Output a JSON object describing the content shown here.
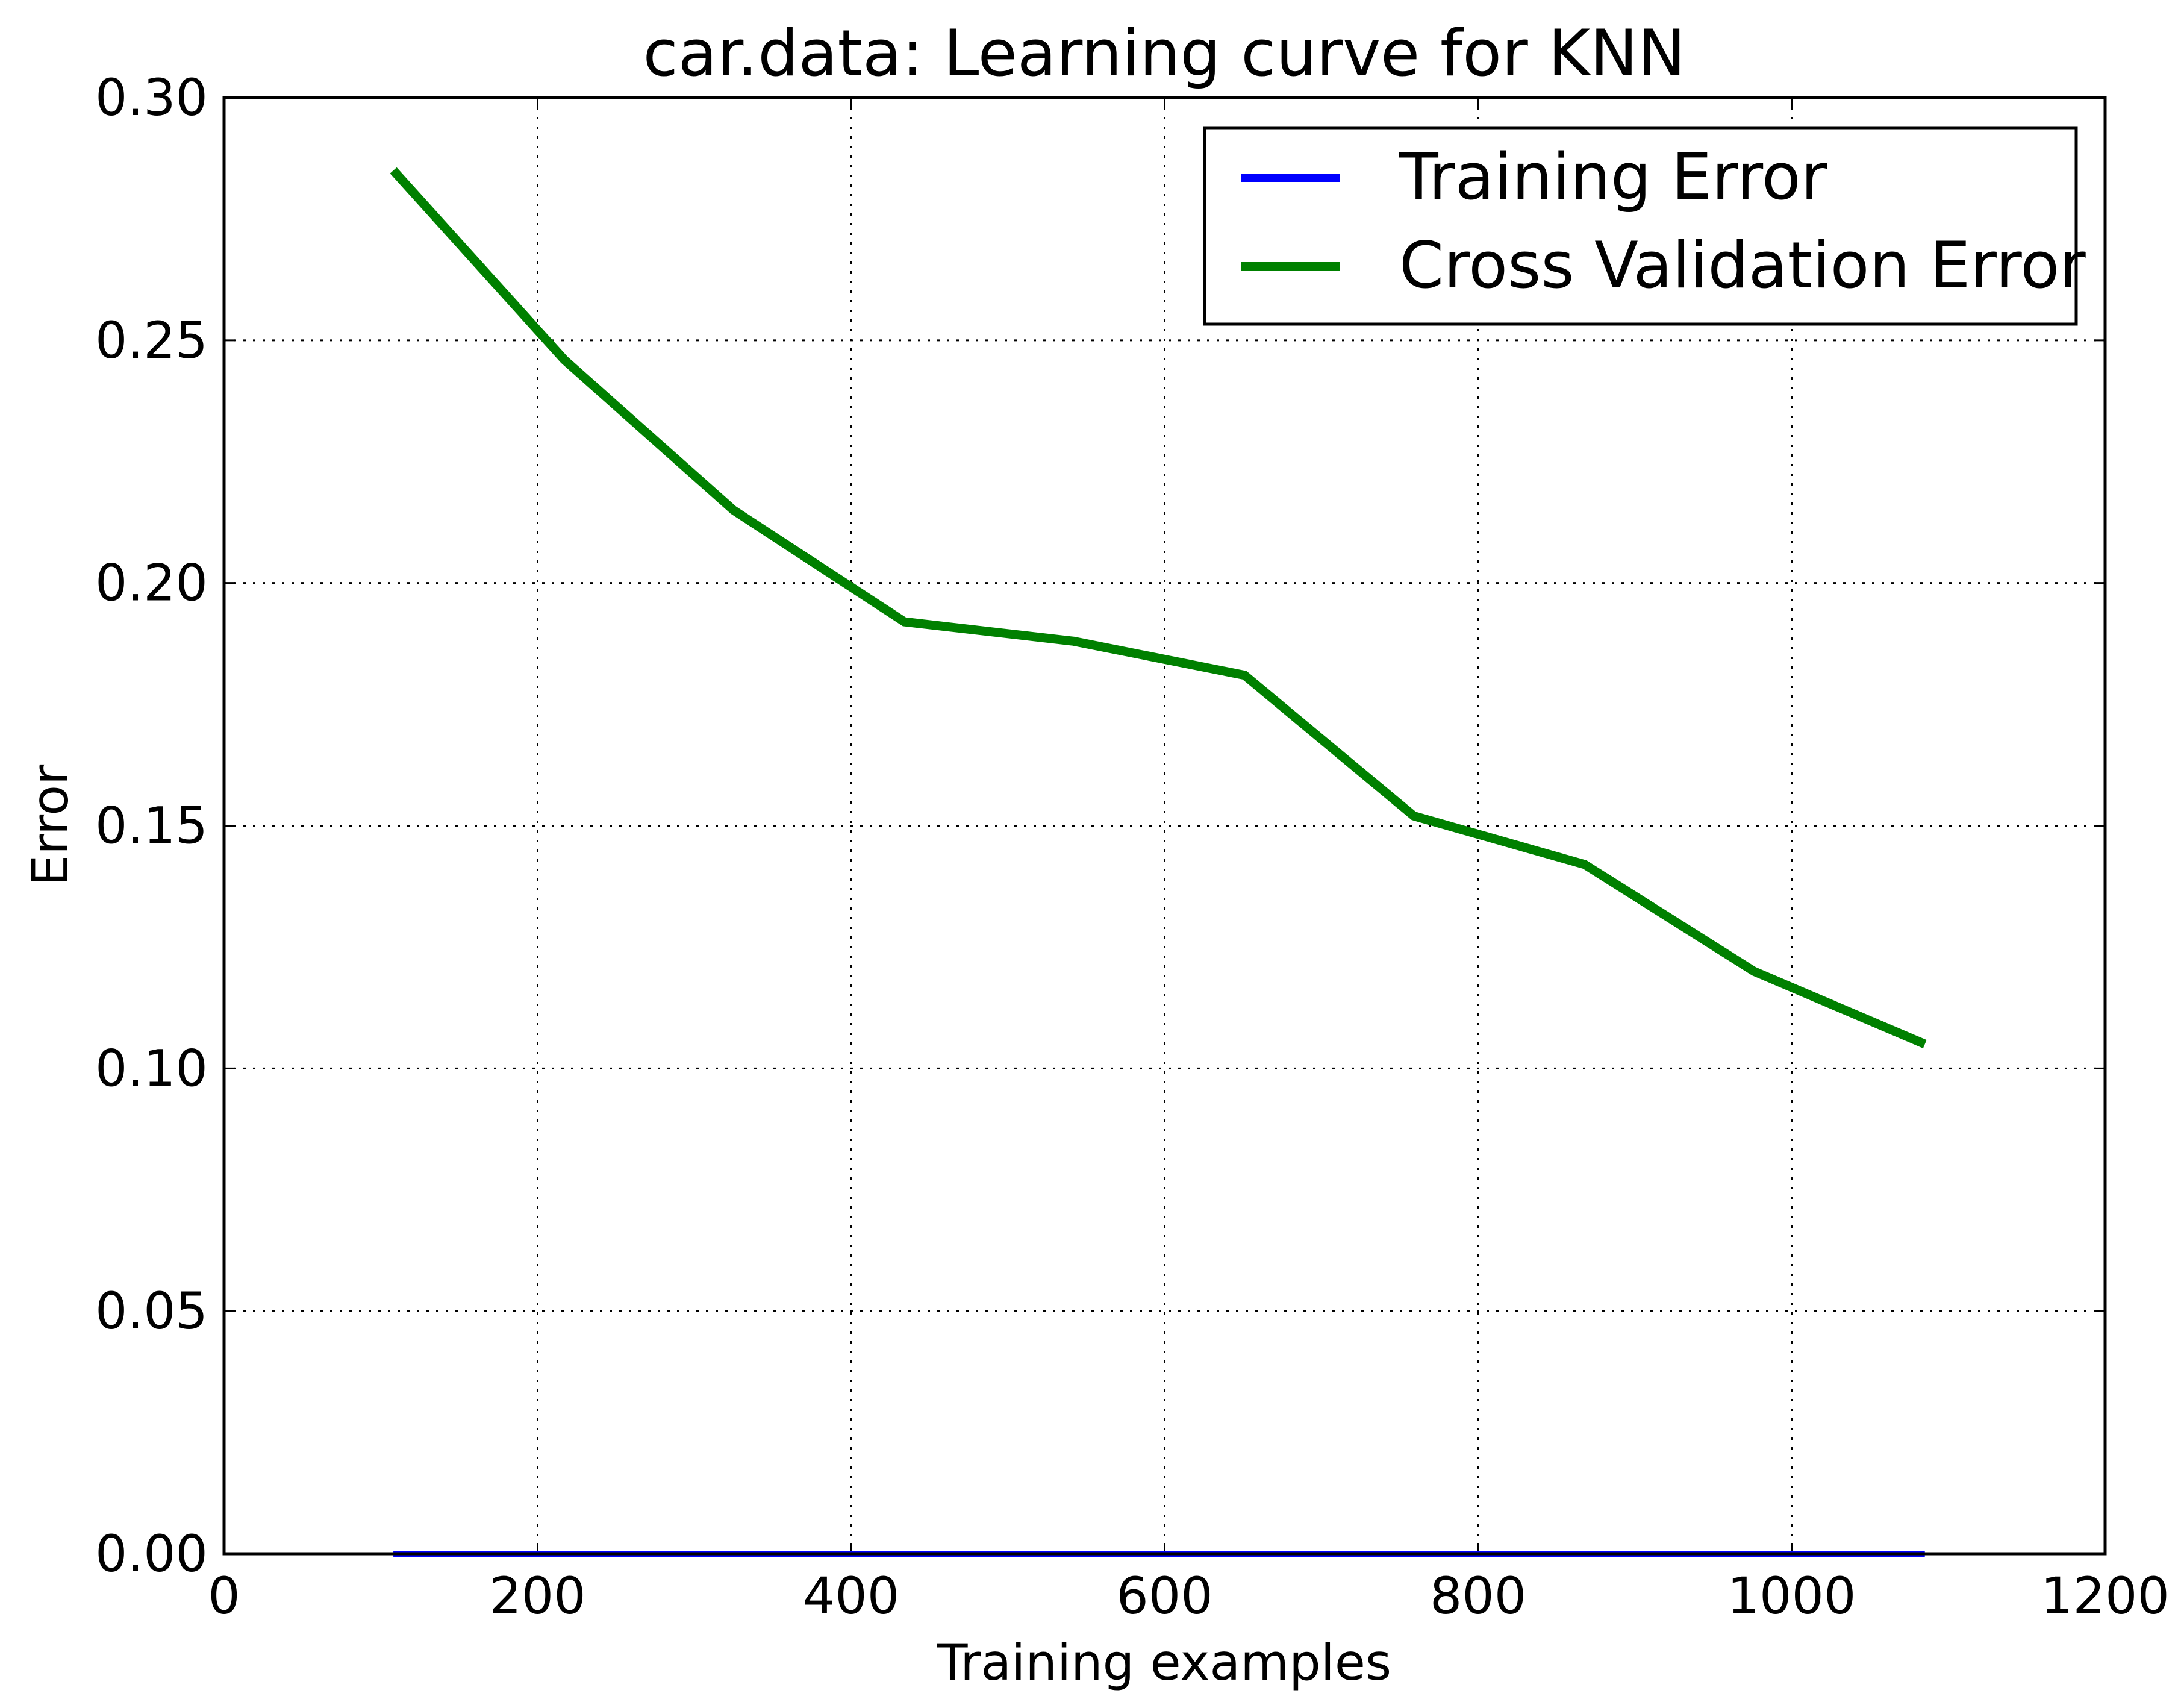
{
  "chart_data": {
    "type": "line",
    "title": "car.data: Learning curve for KNN",
    "xlabel": "Training examples",
    "ylabel": "Error",
    "xlim": [
      0,
      1200
    ],
    "ylim": [
      0.0,
      0.3
    ],
    "xticks": [
      0,
      200,
      400,
      600,
      800,
      1000,
      1200
    ],
    "xtick_labels": [
      "0",
      "200",
      "400",
      "600",
      "800",
      "1000",
      "1200"
    ],
    "yticks": [
      0.0,
      0.05,
      0.1,
      0.15,
      0.2,
      0.25,
      0.3
    ],
    "ytick_labels": [
      "0.00",
      "0.05",
      "0.10",
      "0.15",
      "0.20",
      "0.25",
      "0.30"
    ],
    "grid": true,
    "legend_position": "top-right",
    "x": [
      108,
      217,
      325,
      434,
      542,
      651,
      759,
      868,
      976,
      1085
    ],
    "series": [
      {
        "name": "Training Error",
        "color": "#0000ff",
        "values": [
          0.0,
          0.0,
          0.0,
          0.0,
          0.0,
          0.0,
          0.0,
          0.0,
          0.0,
          0.0
        ]
      },
      {
        "name": "Cross Validation Error",
        "color": "#008000",
        "values": [
          0.285,
          0.246,
          0.215,
          0.192,
          0.188,
          0.181,
          0.152,
          0.142,
          0.12,
          0.105
        ]
      }
    ]
  }
}
